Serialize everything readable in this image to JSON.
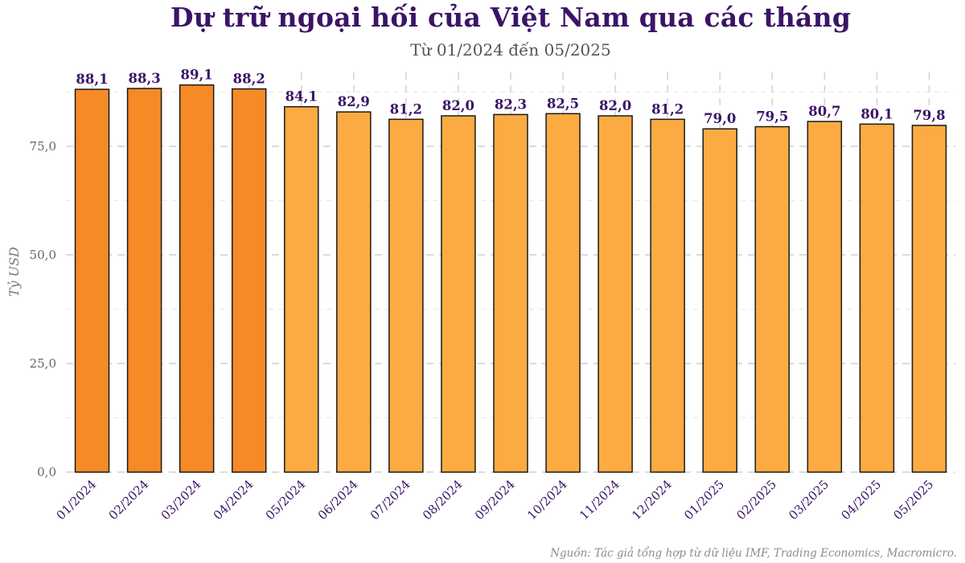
{
  "chart_data": {
    "type": "bar",
    "title": "Dự trữ ngoại hối của Việt Nam qua các tháng",
    "subtitle": "Từ 01/2024 đến 05/2025",
    "ylabel": "Tỷ USD",
    "xlabel": "",
    "ylim": [
      0,
      92
    ],
    "yticks": [
      0,
      25,
      50,
      75
    ],
    "ytick_labels": [
      "0,0",
      "25,0",
      "50,0",
      "75,0"
    ],
    "grid": true,
    "categories": [
      "01/2024",
      "02/2024",
      "03/2024",
      "04/2024",
      "05/2024",
      "06/2024",
      "07/2024",
      "08/2024",
      "09/2024",
      "10/2024",
      "11/2024",
      "12/2024",
      "01/2025",
      "02/2025",
      "03/2025",
      "04/2025",
      "05/2025"
    ],
    "values": [
      88.1,
      88.3,
      89.1,
      88.2,
      84.1,
      82.9,
      81.2,
      82.0,
      82.3,
      82.5,
      82.0,
      81.2,
      79.0,
      79.5,
      80.7,
      80.1,
      79.8
    ],
    "value_labels": [
      "88,1",
      "88,3",
      "89,1",
      "88,2",
      "84,1",
      "82,9",
      "81,2",
      "82,0",
      "82,3",
      "82,5",
      "82,0",
      "81,2",
      "79,0",
      "79,5",
      "80,7",
      "80,1",
      "79,8"
    ],
    "colors": {
      "highlight": "#f58a26",
      "default": "#fcab42",
      "edge": "#1a1a1a",
      "label": "#3b1467"
    },
    "highlight_count": 4,
    "source": "Nguồn: Tác giả tổng hợp từ dữ liệu IMF, Trading Economics, Macromicro."
  }
}
